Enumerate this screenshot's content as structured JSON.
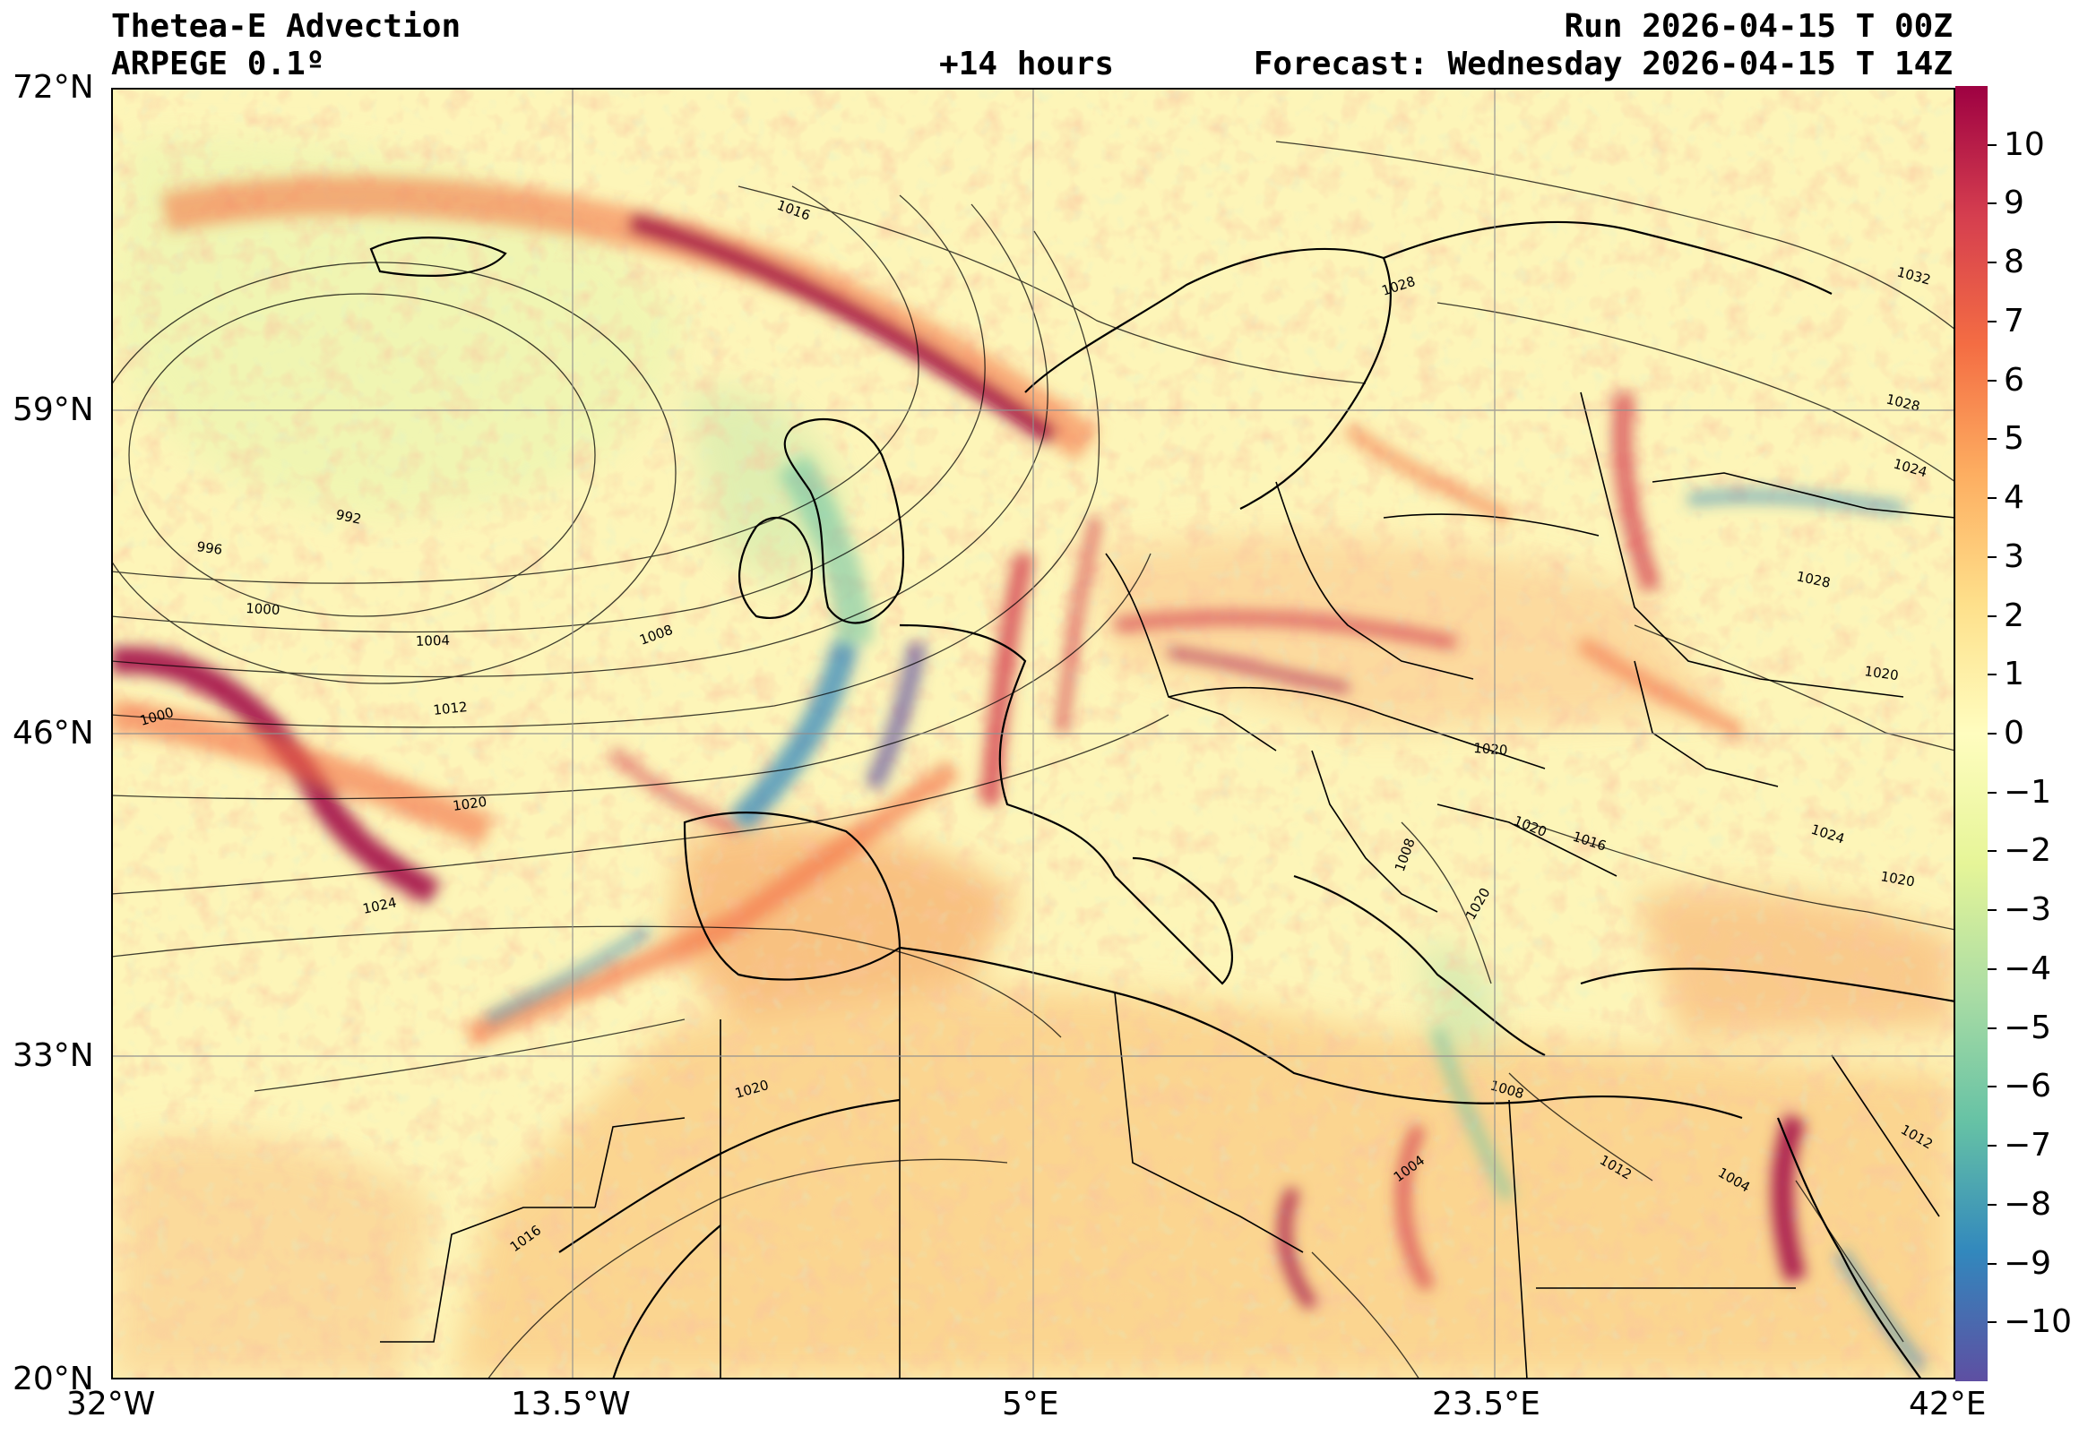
{
  "header": {
    "title": "Thetea-E Advection",
    "model": "ARPEGE 0.1º",
    "lead": "+14 hours",
    "run": "Run 2026-04-15 T 00Z",
    "forecast": "Forecast: Wednesday 2026-04-15 T 14Z"
  },
  "axes": {
    "lat_labels": [
      "72°N",
      "59°N",
      "46°N",
      "33°N",
      "20°N"
    ],
    "lon_labels": [
      "32°W",
      "13.5°W",
      "5°E",
      "23.5°E",
      "42°E"
    ],
    "lat_values": [
      72,
      59,
      46,
      33,
      20
    ],
    "lon_values": [
      -32,
      -13.5,
      5,
      23.5,
      42
    ],
    "lat_range": [
      20,
      72
    ],
    "lon_range": [
      -32,
      42
    ],
    "grid": true
  },
  "colorbar": {
    "labels": [
      "10",
      "9",
      "8",
      "7",
      "6",
      "5",
      "4",
      "3",
      "2",
      "1",
      "0",
      "−1",
      "−2",
      "−3",
      "−4",
      "−5",
      "−6",
      "−7",
      "−8",
      "−9",
      "−10"
    ],
    "values": [
      10,
      9,
      8,
      7,
      6,
      5,
      4,
      3,
      2,
      1,
      0,
      -1,
      -2,
      -3,
      -4,
      -5,
      -6,
      -7,
      -8,
      -9,
      -10
    ],
    "range": [
      -11,
      11
    ],
    "colors": [
      "#5e4fa2",
      "#3288bd",
      "#66c2a5",
      "#abdda4",
      "#e6f598",
      "#fffdbf",
      "#fee08b",
      "#fdae61",
      "#f46d43",
      "#d53e4f",
      "#9e0142"
    ]
  },
  "isobars": [
    {
      "label": "992"
    },
    {
      "label": "996"
    },
    {
      "label": "1000"
    },
    {
      "label": "1004"
    },
    {
      "label": "1008"
    },
    {
      "label": "1012"
    },
    {
      "label": "1016"
    },
    {
      "label": "1020"
    },
    {
      "label": "1024"
    },
    {
      "label": "1028"
    },
    {
      "label": "1032"
    },
    {
      "label": "1000"
    },
    {
      "label": "1020"
    },
    {
      "label": "1020"
    },
    {
      "label": "1016"
    },
    {
      "label": "1020"
    },
    {
      "label": "1008"
    },
    {
      "label": "1004"
    },
    {
      "label": "1004"
    },
    {
      "label": "1012"
    },
    {
      "label": "1008"
    },
    {
      "label": "1024"
    },
    {
      "label": "1020"
    },
    {
      "label": "1020"
    },
    {
      "label": "1028"
    },
    {
      "label": "1024"
    },
    {
      "label": "1028"
    },
    {
      "label": "1016"
    },
    {
      "label": "1020"
    },
    {
      "label": "1012"
    }
  ]
}
